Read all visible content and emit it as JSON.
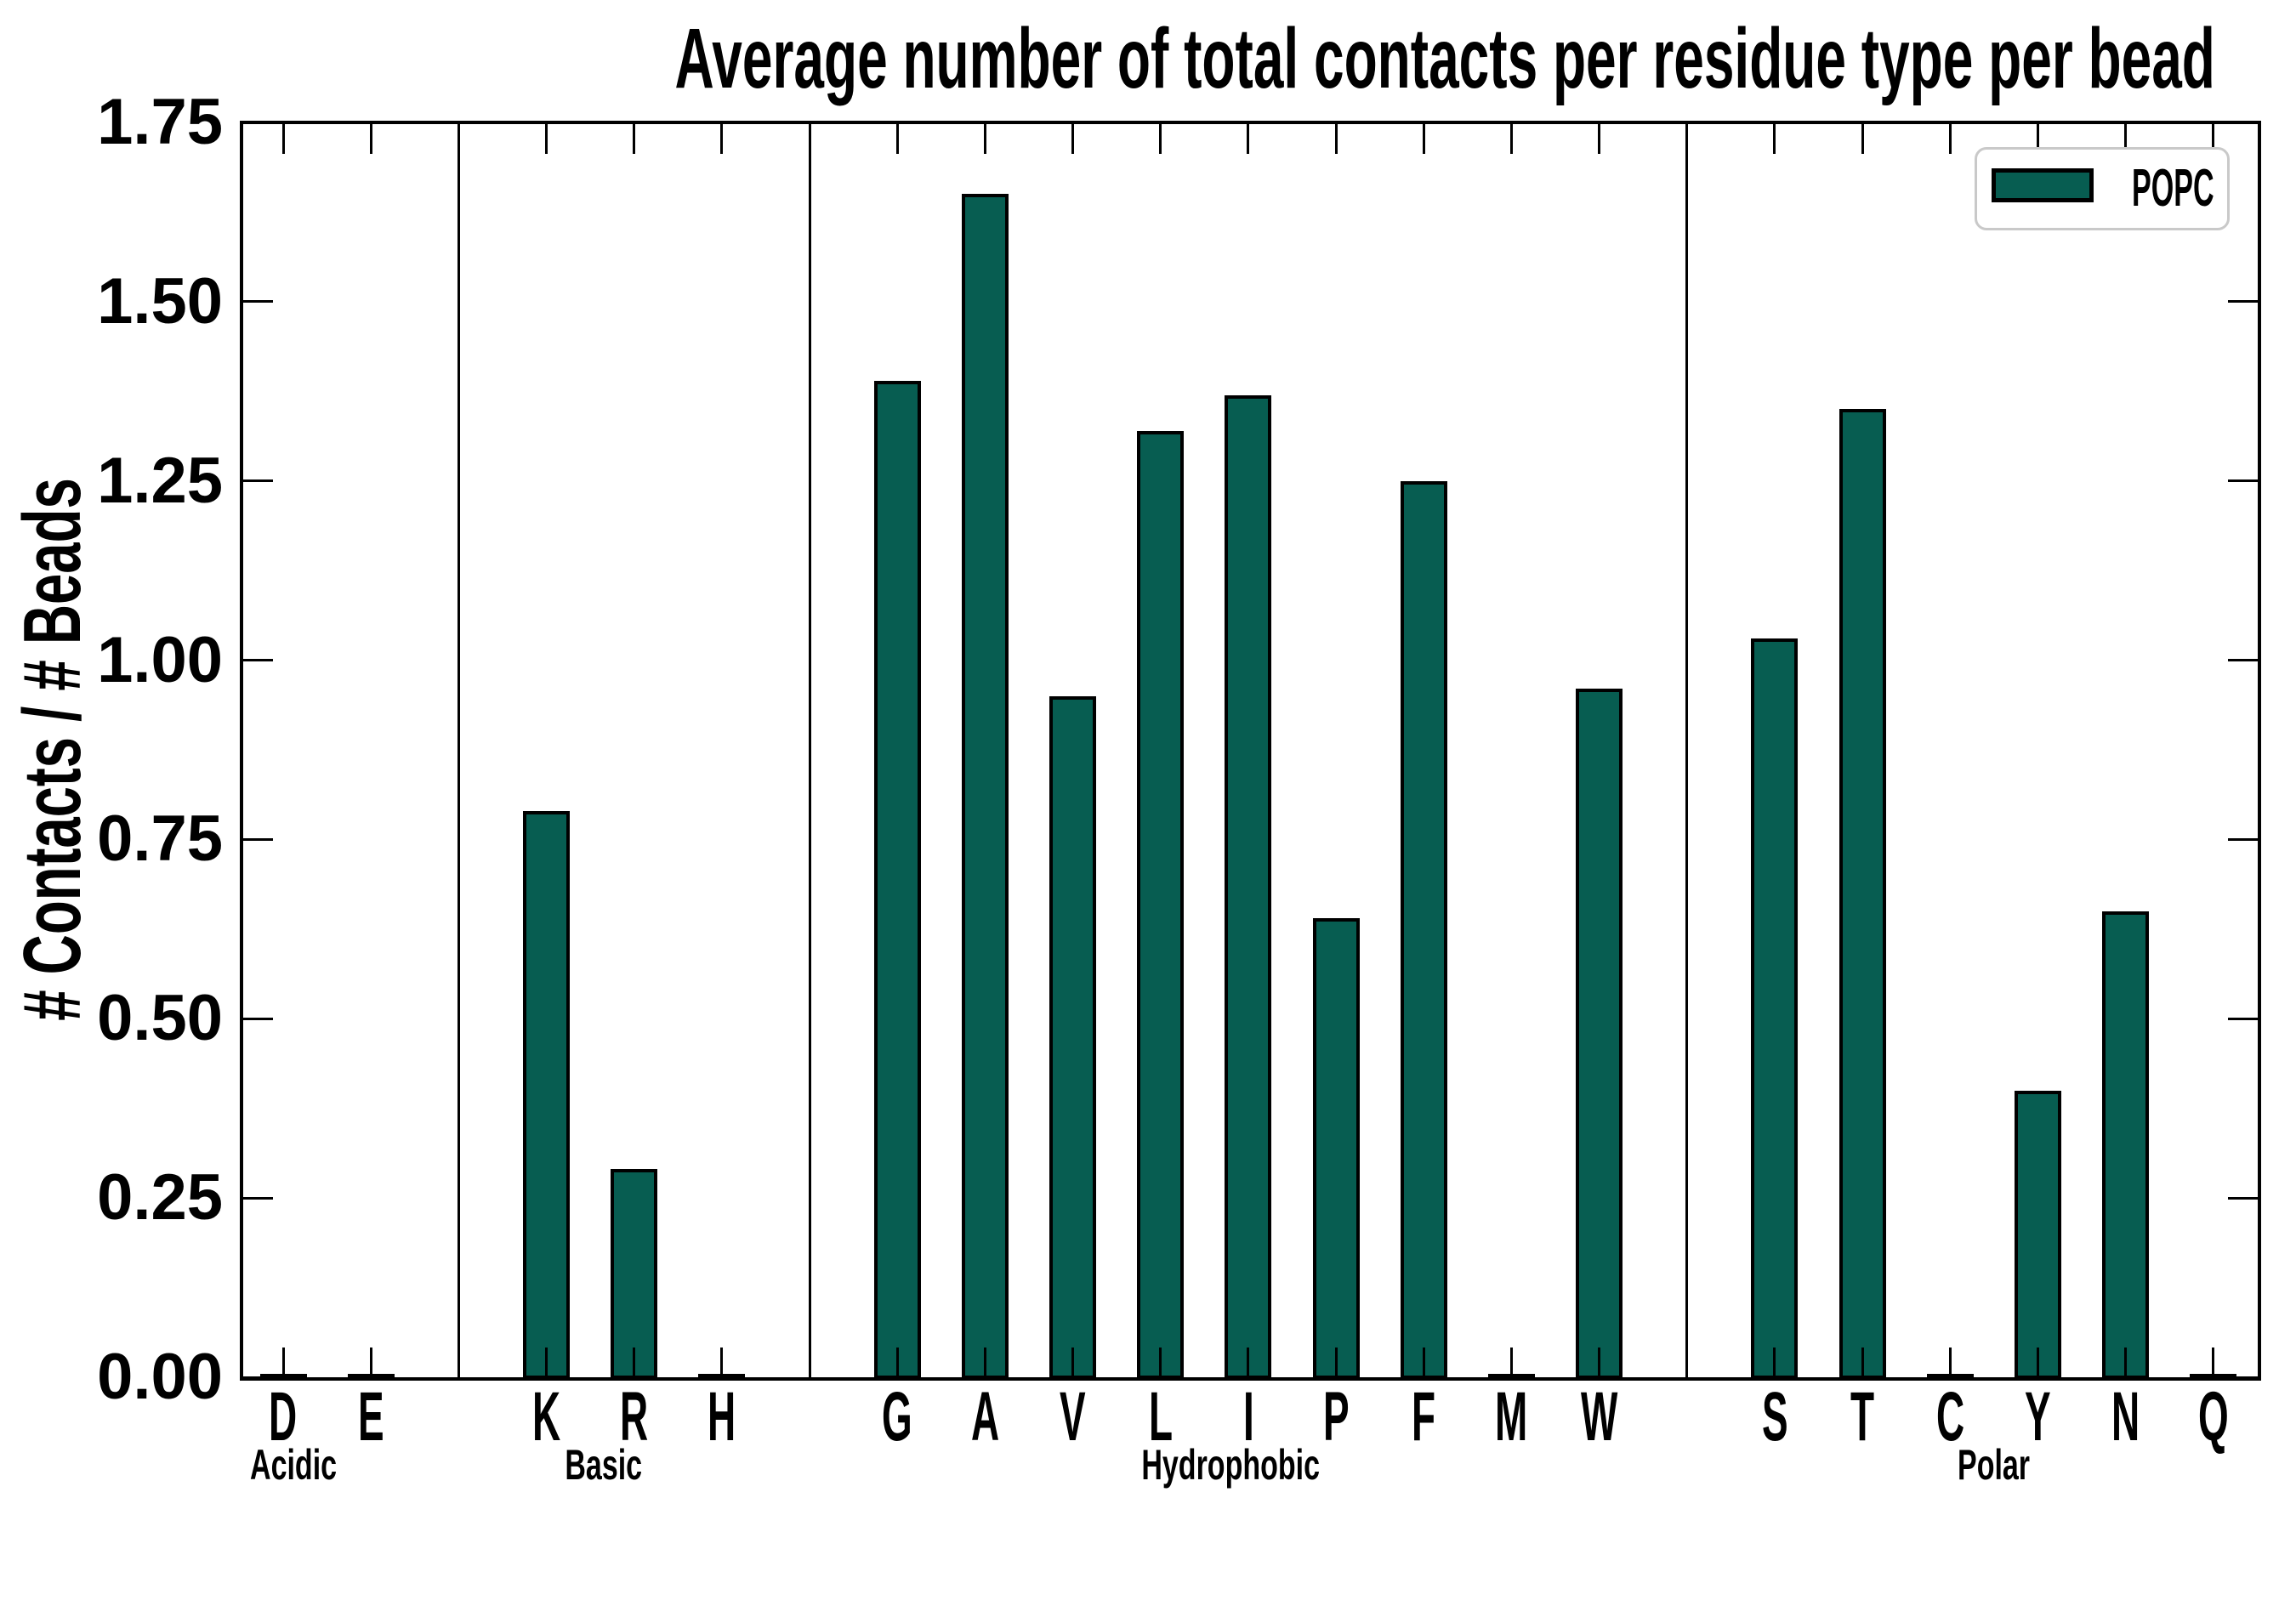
{
  "page": {
    "background": "#ffffff"
  },
  "chart_data": {
    "type": "bar",
    "title": "Average number of total contacts per residue type per bead",
    "xlabel": "",
    "ylabel": "# Contacts / # Beads",
    "ylim": [
      0,
      1.75
    ],
    "grid": false,
    "tick_style": "inward on all four sides",
    "yticks": [
      {
        "value": 0.0,
        "label": "0.00"
      },
      {
        "value": 0.25,
        "label": "0.25"
      },
      {
        "value": 0.5,
        "label": "0.50"
      },
      {
        "value": 0.75,
        "label": "0.75"
      },
      {
        "value": 1.0,
        "label": "1.00"
      },
      {
        "value": 1.25,
        "label": "1.25"
      },
      {
        "value": 1.5,
        "label": "1.50"
      },
      {
        "value": 1.75,
        "label": "1.75"
      }
    ],
    "categories": [
      "D",
      "E",
      "K",
      "R",
      "H",
      "G",
      "A",
      "V",
      "L",
      "I",
      "P",
      "F",
      "M",
      "W",
      "S",
      "T",
      "C",
      "Y",
      "N",
      "Q"
    ],
    "values": [
      0,
      0,
      0.79,
      0.29,
      0,
      1.39,
      1.65,
      0.95,
      1.32,
      1.37,
      0.64,
      1.25,
      0,
      0.96,
      1.03,
      1.35,
      0,
      0.4,
      0.65,
      0
    ],
    "slots": [
      0,
      1,
      3,
      4,
      5,
      7,
      8,
      9,
      10,
      11,
      12,
      13,
      14,
      15,
      17,
      18,
      19,
      20,
      21,
      22
    ],
    "total_slots": 23,
    "separator_slots": [
      2,
      6,
      16
    ],
    "groups": [
      {
        "label": "Acidic",
        "members": [
          "D",
          "E"
        ],
        "center_slot": 0.12
      },
      {
        "label": "Basic",
        "members": [
          "K",
          "R",
          "H"
        ],
        "center_slot": 3.65
      },
      {
        "label": "Hydrophobic",
        "members": [
          "G",
          "A",
          "V",
          "L",
          "I",
          "P",
          "F",
          "M",
          "W"
        ],
        "center_slot": 10.8
      },
      {
        "label": "Polar",
        "members": [
          "S",
          "T",
          "C",
          "Y",
          "N",
          "Q"
        ],
        "center_slot": 19.5
      }
    ],
    "legend": {
      "position": "upper right",
      "entries": [
        {
          "label": "POPC",
          "color": "#075d51"
        }
      ]
    },
    "colors": {
      "bar_fill": "#075d51",
      "bar_edge": "#000000",
      "axis": "#000000",
      "legend_border": "#c9c9c9",
      "background": "#ffffff"
    }
  }
}
